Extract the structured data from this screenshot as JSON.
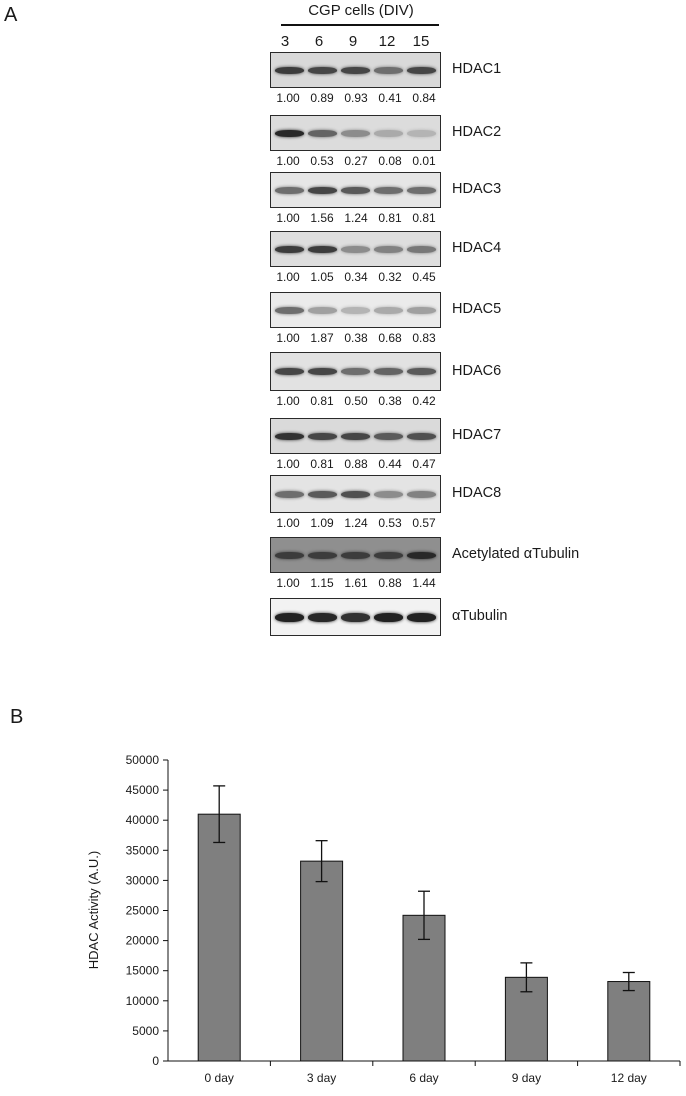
{
  "panels": {
    "a": "A",
    "b": "B"
  },
  "blot": {
    "header": "CGP cells (DIV)",
    "lanes": [
      "3",
      "6",
      "9",
      "12",
      "15"
    ],
    "rows": [
      {
        "protein": "HDAC1",
        "densities": [
          "1.00",
          "0.89",
          "0.93",
          "0.41",
          "0.84"
        ]
      },
      {
        "protein": "HDAC2",
        "densities": [
          "1.00",
          "0.53",
          "0.27",
          "0.08",
          "0.01"
        ]
      },
      {
        "protein": "HDAC3",
        "densities": [
          "1.00",
          "1.56",
          "1.24",
          "0.81",
          "0.81"
        ]
      },
      {
        "protein": "HDAC4",
        "densities": [
          "1.00",
          "1.05",
          "0.34",
          "0.32",
          "0.45"
        ]
      },
      {
        "protein": "HDAC5",
        "densities": [
          "1.00",
          "1.87",
          "0.38",
          "0.68",
          "0.83"
        ]
      },
      {
        "protein": "HDAC6",
        "densities": [
          "1.00",
          "0.81",
          "0.50",
          "0.38",
          "0.42"
        ]
      },
      {
        "protein": "HDAC7",
        "densities": [
          "1.00",
          "0.81",
          "0.88",
          "0.44",
          "0.47"
        ]
      },
      {
        "protein": "HDAC8",
        "densities": [
          "1.00",
          "1.09",
          "1.24",
          "0.53",
          "0.57"
        ]
      },
      {
        "protein": "Acetylated αTubulin",
        "densities": [
          "1.00",
          "1.15",
          "1.61",
          "0.88",
          "1.44"
        ]
      },
      {
        "protein": "αTubulin",
        "densities": []
      }
    ]
  },
  "chart_data": {
    "type": "bar",
    "title": "",
    "xlabel": "",
    "ylabel": "HDAC Activity (A.U.)",
    "categories": [
      "0 day",
      "3 day",
      "6 day",
      "9 day",
      "12 day"
    ],
    "values": [
      41000,
      33200,
      24200,
      13900,
      13200
    ],
    "error": [
      4700,
      3400,
      4000,
      2400,
      1500
    ],
    "ylim": [
      0,
      50000
    ],
    "yticks": [
      0,
      5000,
      10000,
      15000,
      20000,
      25000,
      30000,
      35000,
      40000,
      45000,
      50000
    ],
    "bar_color": "#7f7f7f",
    "grid": false
  }
}
